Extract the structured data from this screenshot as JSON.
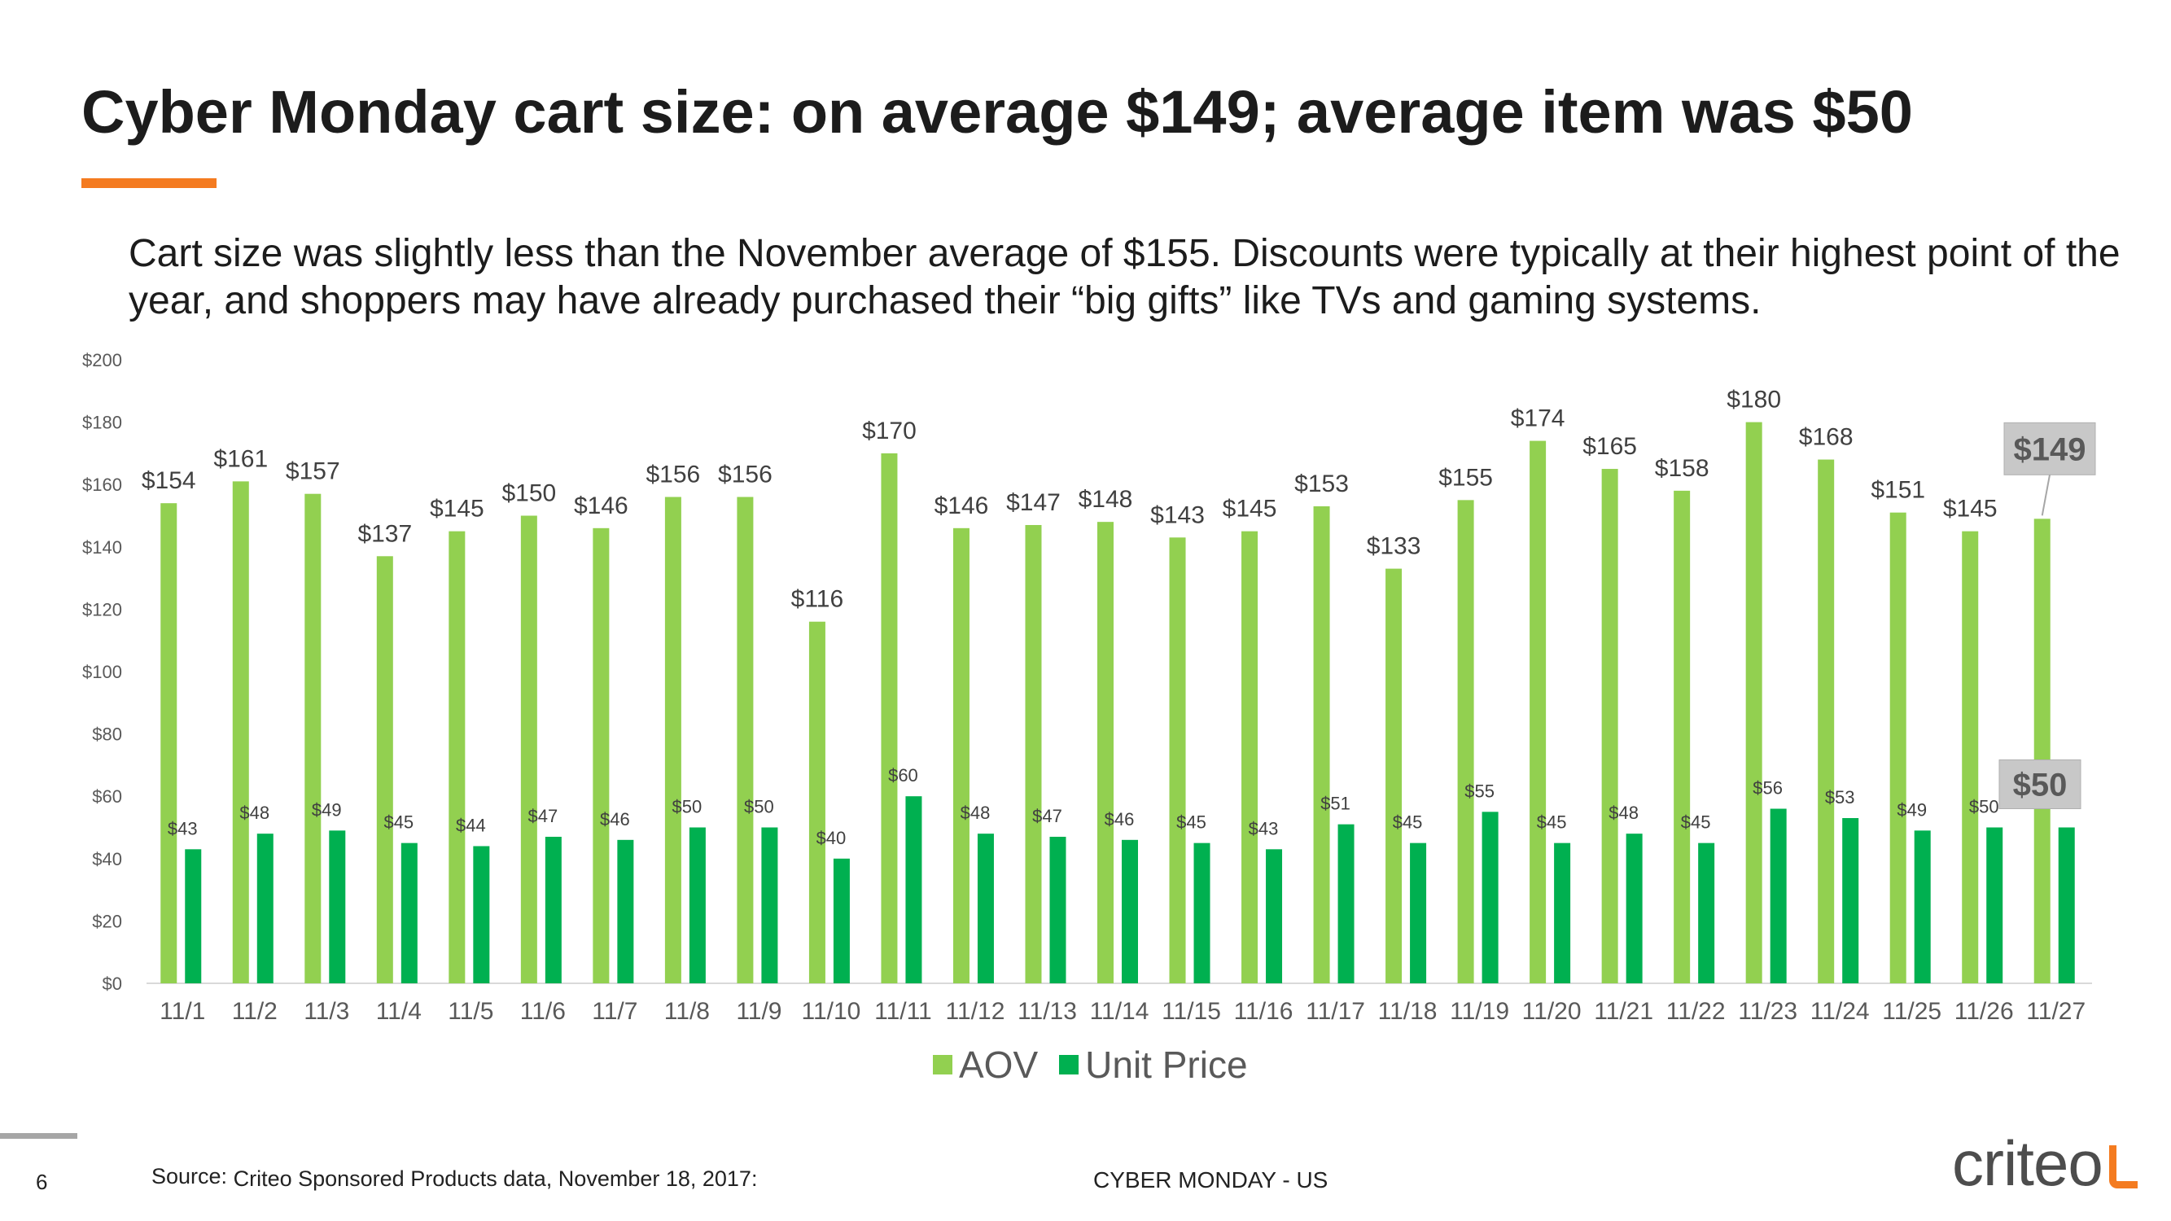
{
  "slide": {
    "title": "Cyber Monday cart size: on average $149; average item was $50",
    "accent_color": "#f47b20",
    "subtitle": "Cart size was slightly less than the November average of $155.  Discounts were typically at their highest point of the year, and shoppers may have already purchased their “big gifts” like TVs and gaming systems."
  },
  "chart_data": {
    "type": "bar",
    "categories": [
      "11/1",
      "11/2",
      "11/3",
      "11/4",
      "11/5",
      "11/6",
      "11/7",
      "11/8",
      "11/9",
      "11/10",
      "11/11",
      "11/12",
      "11/13",
      "11/14",
      "11/15",
      "11/16",
      "11/17",
      "11/18",
      "11/19",
      "11/20",
      "11/21",
      "11/22",
      "11/23",
      "11/24",
      "11/25",
      "11/26",
      "11/27"
    ],
    "series": [
      {
        "name": "AOV",
        "color": "#92d050",
        "values": [
          154,
          161,
          157,
          137,
          145,
          150,
          146,
          156,
          156,
          116,
          170,
          146,
          147,
          148,
          143,
          145,
          153,
          133,
          155,
          174,
          165,
          158,
          180,
          168,
          151,
          145,
          149
        ]
      },
      {
        "name": "Unit Price",
        "color": "#00b050",
        "values": [
          43,
          48,
          49,
          45,
          44,
          47,
          46,
          50,
          50,
          40,
          60,
          48,
          47,
          46,
          45,
          43,
          51,
          45,
          55,
          45,
          48,
          45,
          56,
          53,
          49,
          50,
          50
        ]
      }
    ],
    "y_ticks": [
      "$0",
      "$20",
      "$40",
      "$60",
      "$80",
      "$100",
      "$120",
      "$140",
      "$160",
      "$180",
      "$200"
    ],
    "ylim": [
      0,
      200
    ],
    "label_prefix": "$",
    "highlight": {
      "category": "11/27",
      "aov_label": "$149",
      "unit_label": "$50"
    },
    "grid": false,
    "legend_position": "bottom",
    "title": "",
    "xlabel": "",
    "ylabel": ""
  },
  "footer": {
    "page_number": "6",
    "source_label": "Source:",
    "source_text": "Criteo Sponsored Products data, November 18, 2017:",
    "center_text": "CYBER MONDAY - US",
    "logo_text": "criteo",
    "logo_accent_color": "#f47b20"
  }
}
